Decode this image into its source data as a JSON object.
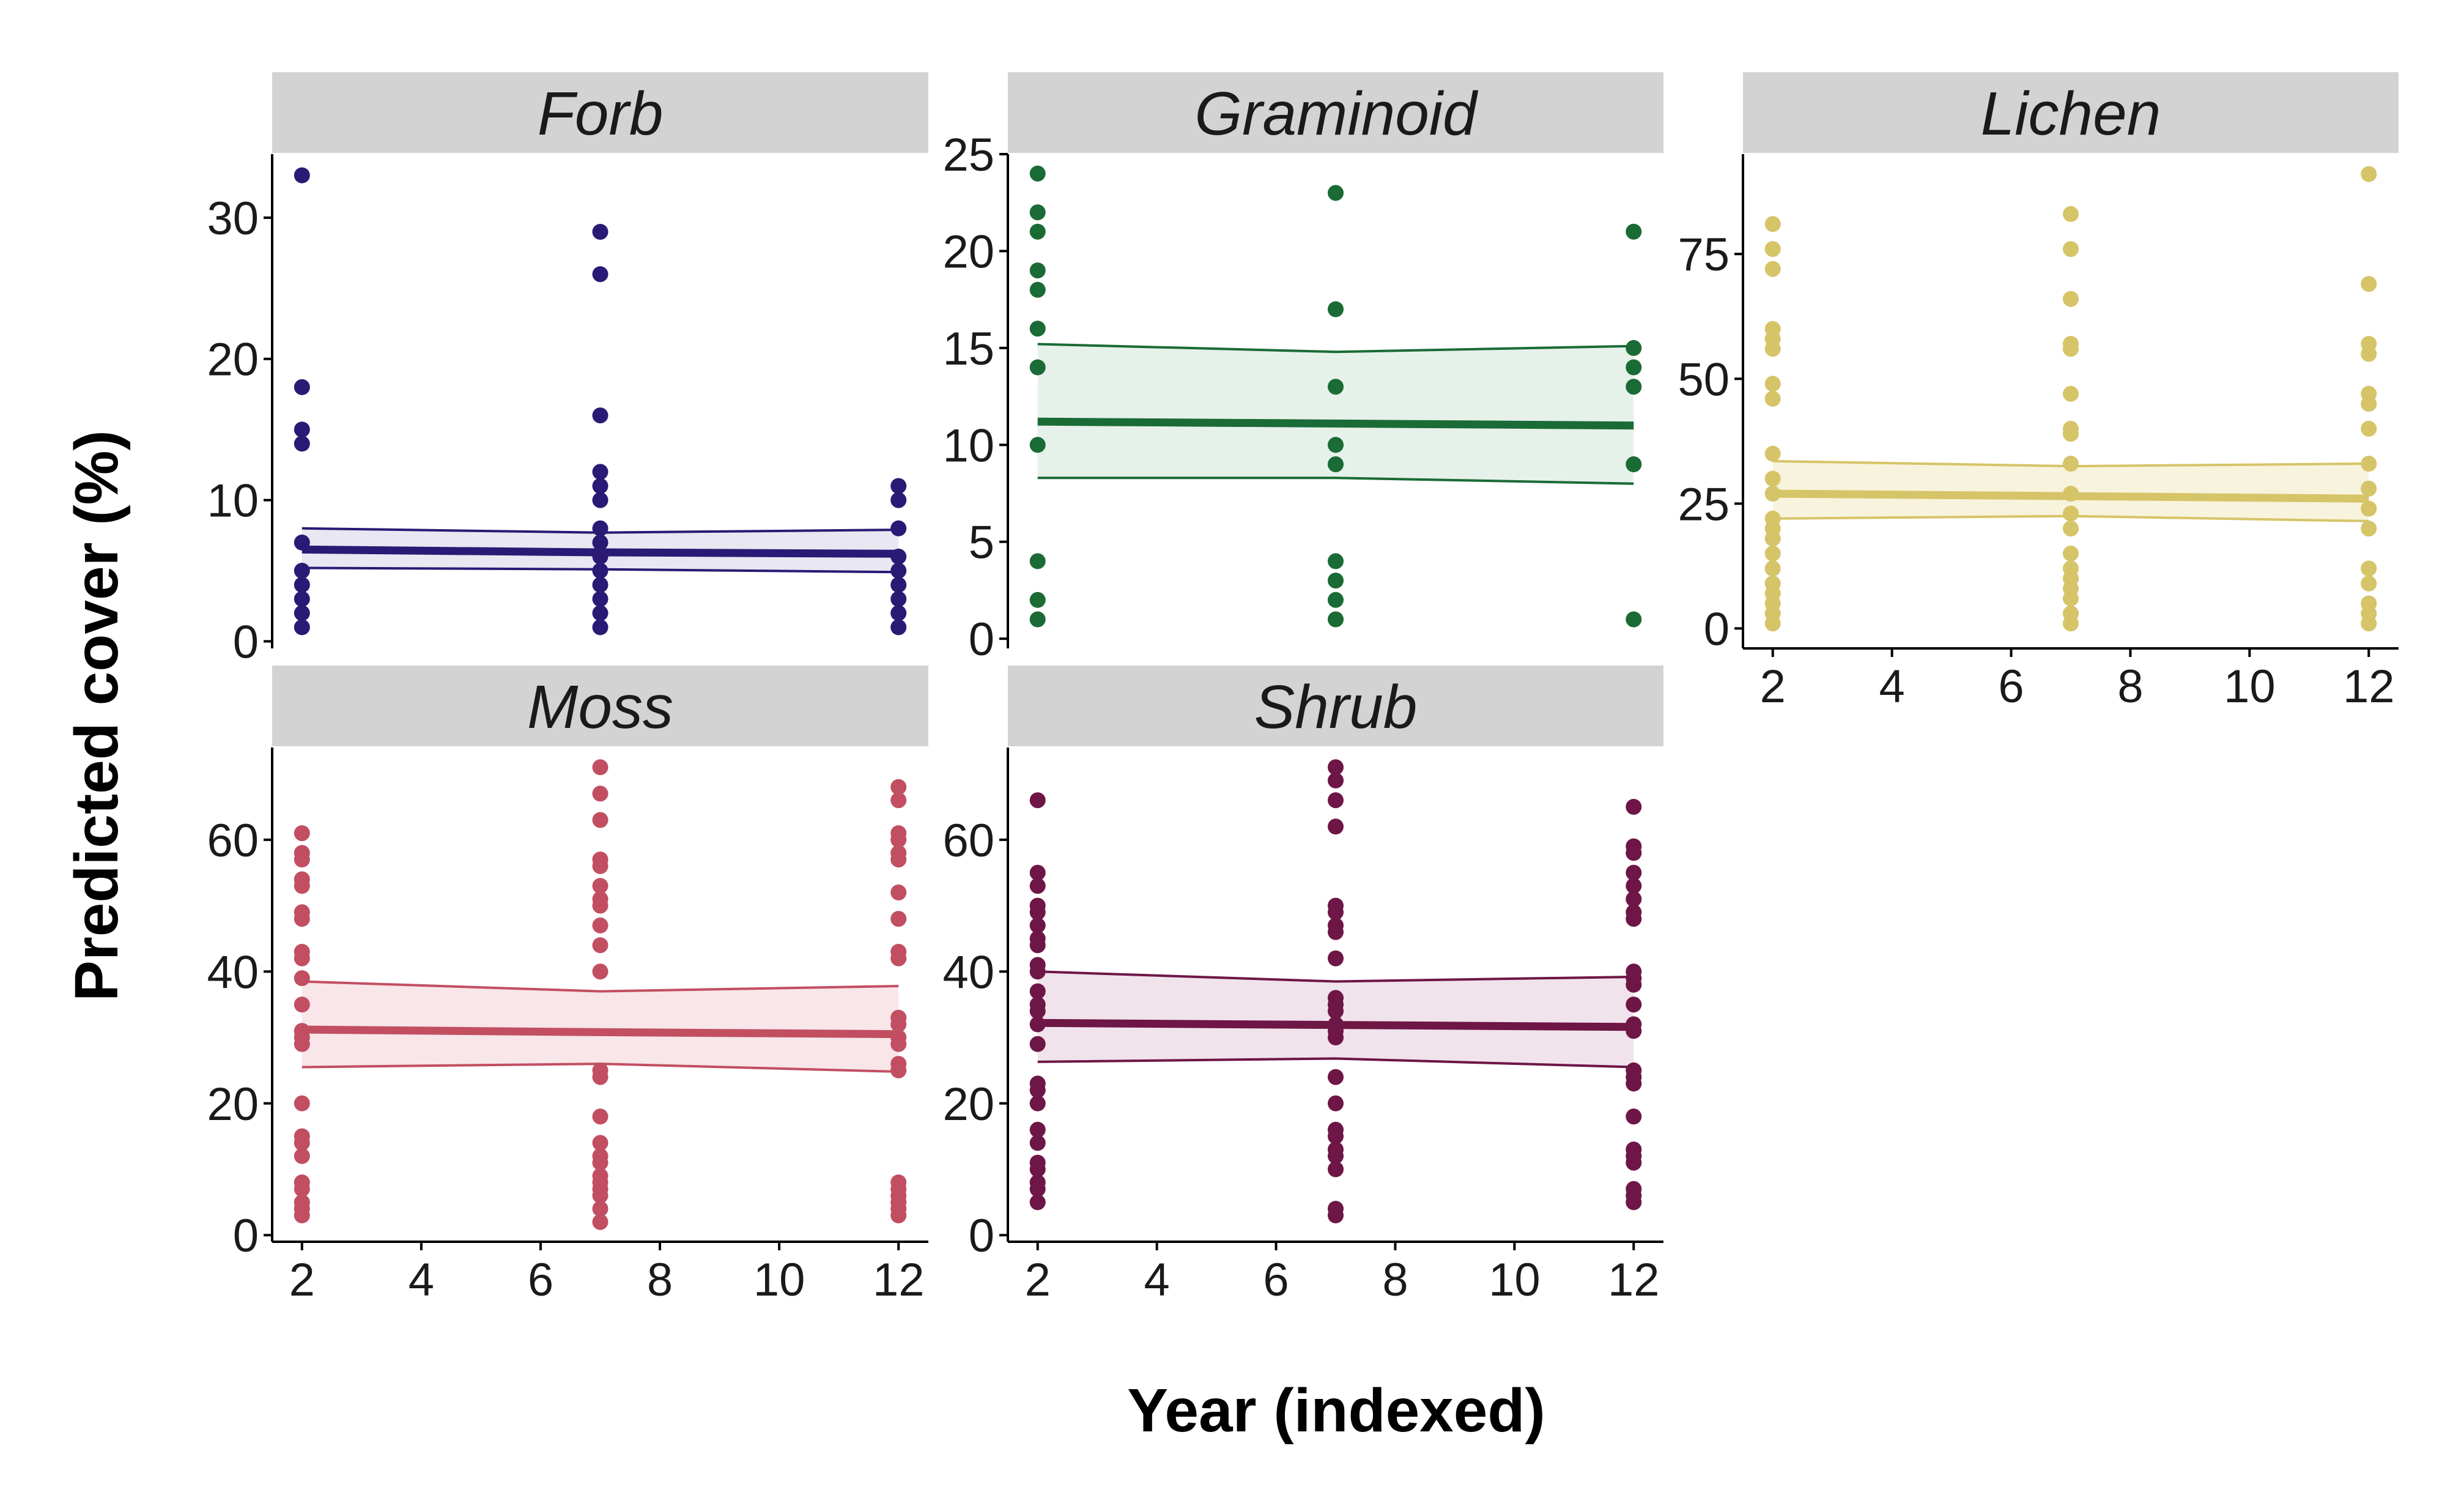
{
  "chart_data": {
    "type": "scatter",
    "xlabel": "Year (indexed)",
    "ylabel": "Predicted cover (%)",
    "grid": false,
    "legend": "none",
    "panels": [
      {
        "name": "Forb",
        "color": "#2a1a75",
        "fill": "#e9e7f1",
        "xlim": [
          1.5,
          12.5
        ],
        "xticks": [
          2,
          4,
          6,
          8,
          10,
          12
        ],
        "ylim": [
          -0.5,
          34.5
        ],
        "yticks": [
          0,
          10,
          20,
          30
        ],
        "points": [
          {
            "x": 2,
            "y": [
              33,
              18,
              15,
              14,
              7,
              5,
              4,
              3,
              2,
              1
            ]
          },
          {
            "x": 7,
            "y": [
              29,
              26,
              16,
              12,
              11,
              10,
              8,
              7,
              6,
              5,
              4,
              3,
              2,
              1
            ]
          },
          {
            "x": 12,
            "y": [
              11,
              10,
              8,
              6,
              5,
              4,
              3,
              2,
              1
            ]
          }
        ],
        "fit": {
          "x": [
            2,
            7,
            12
          ],
          "y": [
            6.5,
            6.3,
            6.2
          ],
          "lower": [
            5.2,
            5.1,
            4.9
          ],
          "upper": [
            8.0,
            7.7,
            7.9
          ]
        }
      },
      {
        "name": "Graminoid",
        "color": "#1a6b35",
        "fill": "#e6f1ea",
        "xlim": [
          1.5,
          12.5
        ],
        "xticks": [
          2,
          4,
          6,
          8,
          10,
          12
        ],
        "ylim": [
          -0.5,
          25
        ],
        "yticks": [
          0,
          5,
          10,
          15,
          20,
          25
        ],
        "points": [
          {
            "x": 2,
            "y": [
              24,
              22,
              21,
              19,
              18,
              16,
              14,
              10,
              4,
              2,
              1
            ]
          },
          {
            "x": 7,
            "y": [
              23,
              17,
              13,
              10,
              9,
              4,
              3,
              2,
              1
            ]
          },
          {
            "x": 12,
            "y": [
              21,
              15,
              14,
              13,
              9,
              1
            ]
          }
        ],
        "fit": {
          "x": [
            2,
            7,
            12
          ],
          "y": [
            11.2,
            11.1,
            11.0
          ],
          "lower": [
            8.3,
            8.3,
            8.0
          ],
          "upper": [
            15.2,
            14.8,
            15.1
          ]
        }
      },
      {
        "name": "Lichen",
        "color": "#d6c468",
        "fill": "#f8f3dc",
        "xlim": [
          1.5,
          12.5
        ],
        "xticks": [
          2,
          4,
          6,
          8,
          10,
          12
        ],
        "ylim": [
          -4,
          95
        ],
        "yticks": [
          0,
          25,
          50,
          75
        ],
        "points": [
          {
            "x": 2,
            "y": [
              81,
              76,
              72,
              60,
              58,
              56,
              49,
              46,
              35,
              30,
              27,
              22,
              20,
              18,
              15,
              12,
              9,
              7,
              5,
              3,
              1
            ]
          },
          {
            "x": 7,
            "y": [
              83,
              76,
              66,
              57,
              56,
              47,
              40,
              39,
              33,
              27,
              23,
              20,
              15,
              12,
              10,
              8,
              6,
              3,
              1
            ]
          },
          {
            "x": 12,
            "y": [
              91,
              69,
              57,
              55,
              47,
              45,
              40,
              33,
              28,
              24,
              20,
              12,
              9,
              5,
              3,
              1
            ]
          }
        ],
        "fit": {
          "x": [
            2,
            7,
            12
          ],
          "y": [
            27.0,
            26.5,
            26.0
          ],
          "lower": [
            22.0,
            22.5,
            21.5
          ],
          "upper": [
            33.5,
            32.5,
            33.0
          ]
        }
      },
      {
        "name": "Moss",
        "color": "#c24e62",
        "fill": "#f8e6e9",
        "xlim": [
          1.5,
          12.5
        ],
        "xticks": [
          2,
          4,
          6,
          8,
          10,
          12
        ],
        "ylim": [
          -1,
          74
        ],
        "yticks": [
          0,
          20,
          40,
          60
        ],
        "points": [
          {
            "x": 2,
            "y": [
              61,
              58,
              57,
              54,
              53,
              49,
              48,
              43,
              42,
              39,
              35,
              31,
              30,
              29,
              20,
              15,
              14,
              12,
              8,
              7,
              5,
              4,
              3
            ]
          },
          {
            "x": 7,
            "y": [
              71,
              67,
              63,
              57,
              56,
              53,
              51,
              50,
              47,
              44,
              40,
              25,
              24,
              18,
              14,
              12,
              11,
              9,
              8,
              7,
              6,
              4,
              2
            ]
          },
          {
            "x": 12,
            "y": [
              68,
              66,
              61,
              60,
              58,
              57,
              52,
              48,
              43,
              42,
              33,
              32,
              30,
              29,
              26,
              25,
              8,
              7,
              6,
              5,
              4,
              3
            ]
          }
        ],
        "fit": {
          "x": [
            2,
            7,
            12
          ],
          "y": [
            31.2,
            30.8,
            30.5
          ],
          "lower": [
            25.5,
            26.0,
            24.8
          ],
          "upper": [
            38.5,
            37.0,
            37.8
          ]
        }
      },
      {
        "name": "Shrub",
        "color": "#6e1646",
        "fill": "#f1e3ec",
        "xlim": [
          1.5,
          12.5
        ],
        "xticks": [
          2,
          4,
          6,
          8,
          10,
          12
        ],
        "ylim": [
          -1,
          74
        ],
        "yticks": [
          0,
          20,
          40,
          60
        ],
        "points": [
          {
            "x": 2,
            "y": [
              66,
              55,
              53,
              50,
              49,
              47,
              45,
              44,
              41,
              40,
              37,
              35,
              34,
              32,
              29,
              23,
              22,
              20,
              16,
              14,
              11,
              10,
              8,
              7,
              5
            ]
          },
          {
            "x": 7,
            "y": [
              71,
              69,
              66,
              62,
              50,
              49,
              47,
              46,
              42,
              36,
              35,
              34,
              32,
              31,
              30,
              24,
              20,
              16,
              15,
              13,
              12,
              10,
              4,
              3
            ]
          },
          {
            "x": 12,
            "y": [
              65,
              59,
              58,
              55,
              53,
              51,
              49,
              48,
              40,
              39,
              38,
              35,
              32,
              31,
              25,
              24,
              23,
              18,
              13,
              12,
              11,
              7,
              6,
              5
            ]
          }
        ],
        "fit": {
          "x": [
            2,
            7,
            12
          ],
          "y": [
            32.2,
            31.9,
            31.6
          ],
          "lower": [
            26.3,
            26.8,
            25.5
          ],
          "upper": [
            40.0,
            38.5,
            39.2
          ]
        }
      }
    ]
  }
}
